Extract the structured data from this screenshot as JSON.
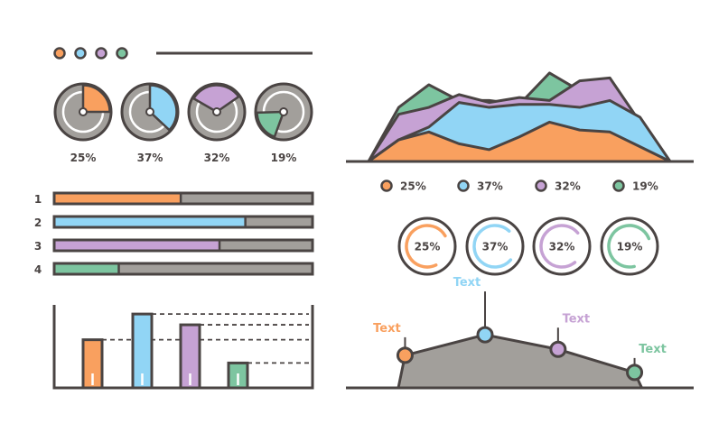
{
  "colors": {
    "outline": "#4a4443",
    "orange": "#f9a05f",
    "blue": "#91d5f5",
    "purple": "#c6a2d4",
    "green": "#7dc5a0",
    "gray": "#a29f9b",
    "white": "#ffffff"
  },
  "chart_data": [
    {
      "type": "pie",
      "name": "pie-row",
      "values": [
        25,
        37,
        32,
        19
      ],
      "labels": [
        "25%",
        "37%",
        "32%",
        "19%"
      ],
      "colors": [
        "orange",
        "blue",
        "purple",
        "green"
      ]
    },
    {
      "type": "bar",
      "name": "horizontal-progress",
      "orientation": "horizontal",
      "categories": [
        "1",
        "2",
        "3",
        "4"
      ],
      "values": [
        0.49,
        0.74,
        0.64,
        0.25
      ],
      "colors": [
        "orange",
        "blue",
        "purple",
        "green"
      ]
    },
    {
      "type": "bar",
      "name": "vertical-bars",
      "values": [
        58,
        89,
        76,
        30
      ],
      "ylim": [
        0,
        100
      ],
      "colors": [
        "orange",
        "blue",
        "purple",
        "green"
      ]
    },
    {
      "type": "area",
      "name": "mountain-area",
      "x": [
        0,
        1,
        2,
        3,
        4,
        5,
        6,
        7,
        8,
        9,
        10
      ],
      "series": [
        {
          "color": "green",
          "values": [
            0,
            55,
            78,
            62,
            62,
            58,
            90,
            72,
            40,
            15,
            0
          ]
        },
        {
          "color": "purple",
          "values": [
            0,
            48,
            55,
            68,
            60,
            65,
            62,
            82,
            85,
            40,
            0
          ]
        },
        {
          "color": "blue",
          "values": [
            0,
            22,
            35,
            60,
            55,
            58,
            58,
            55,
            62,
            45,
            0
          ]
        },
        {
          "color": "orange",
          "values": [
            0,
            22,
            30,
            18,
            12,
            25,
            40,
            32,
            30,
            15,
            0
          ]
        }
      ]
    },
    {
      "type": "legend",
      "name": "area-legend",
      "labels": [
        "25%",
        "37%",
        "32%",
        "19%"
      ],
      "colors": [
        "orange",
        "blue",
        "purple",
        "green"
      ]
    },
    {
      "type": "pie",
      "name": "ring-row",
      "variant": "ring",
      "values": [
        25,
        37,
        32,
        19
      ],
      "labels": [
        "25%",
        "37%",
        "32%",
        "19%"
      ],
      "colors": [
        "orange",
        "blue",
        "purple",
        "green"
      ]
    },
    {
      "type": "line",
      "name": "annotated-area",
      "points": [
        {
          "x": 0.17,
          "y": 0.38,
          "label": "Text",
          "color": "orange"
        },
        {
          "x": 0.4,
          "y": 0.62,
          "label": "Text",
          "color": "blue"
        },
        {
          "x": 0.61,
          "y": 0.45,
          "label": "Text",
          "color": "purple"
        },
        {
          "x": 0.83,
          "y": 0.18,
          "label": "Text",
          "color": "green"
        }
      ]
    }
  ]
}
